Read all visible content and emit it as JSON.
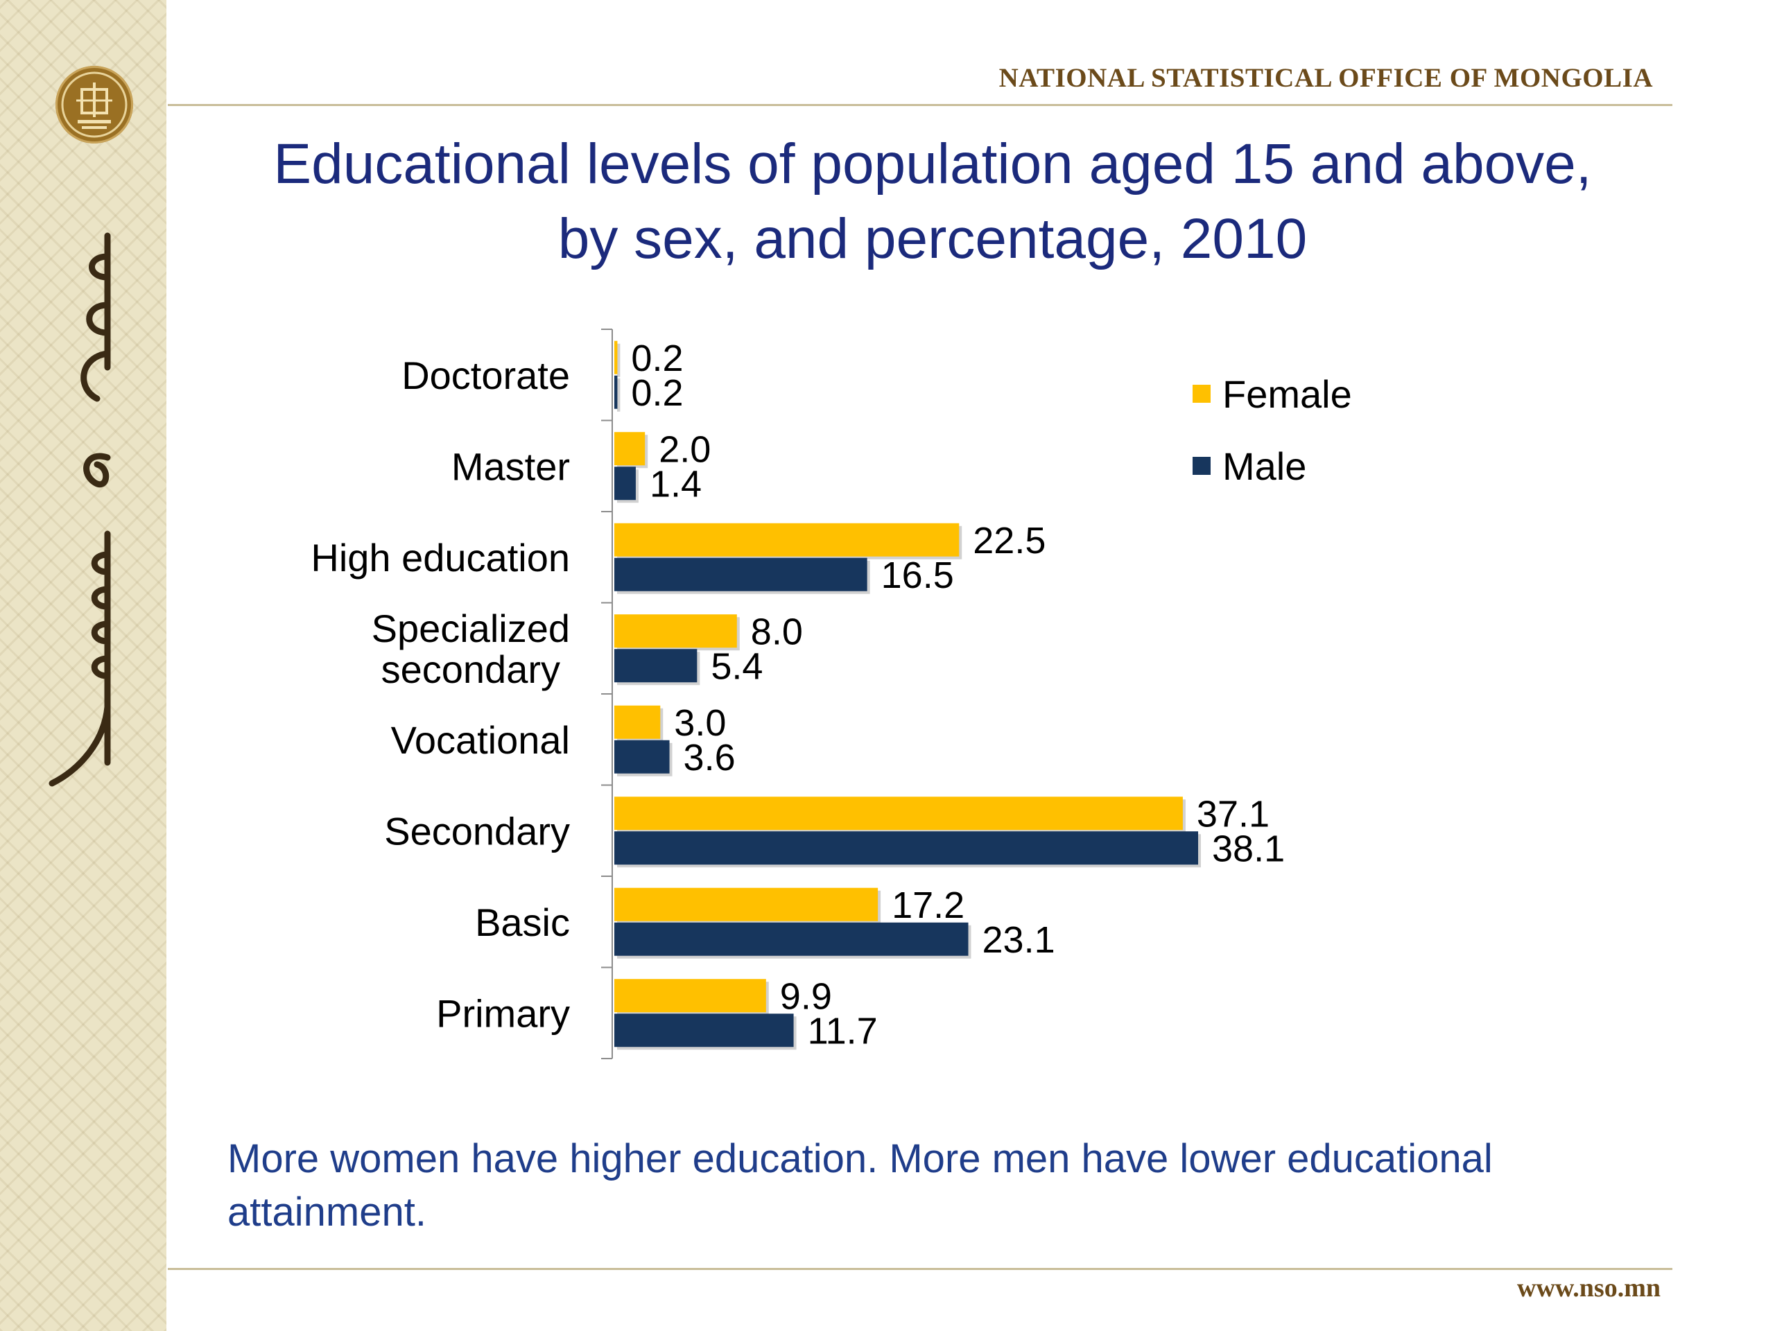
{
  "header": {
    "agency": "NATIONAL STATISTICAL OFFICE OF MONGOLIA",
    "title_line1": "Educational levels of population aged 15 and above,",
    "title_line2": "by sex, and percentage, 2010"
  },
  "footer": {
    "note": "More women have higher education. More men have lower educational attainment.",
    "website": "www.nso.mn"
  },
  "emblem": {
    "icon": "nso-emblem-icon"
  },
  "colors": {
    "female": "#FFC000",
    "male": "#17365D",
    "title": "#1B2A7C",
    "accent": "#6B4A1A"
  },
  "chart_data": {
    "type": "bar",
    "orientation": "horizontal",
    "categories": [
      "Doctorate",
      "Master",
      "High education",
      "Specialized secondary",
      "Vocational",
      "Secondary",
      "Basic",
      "Primary"
    ],
    "series": [
      {
        "name": "Female",
        "values": [
          0.2,
          2.0,
          22.5,
          8.0,
          3.0,
          37.1,
          17.2,
          9.9
        ]
      },
      {
        "name": "Male",
        "values": [
          0.2,
          1.4,
          16.5,
          5.4,
          3.6,
          38.1,
          23.1,
          11.7
        ]
      }
    ],
    "value_format": "0.0",
    "legend": "right",
    "grid": false,
    "xlim": [
      0,
      40
    ]
  }
}
